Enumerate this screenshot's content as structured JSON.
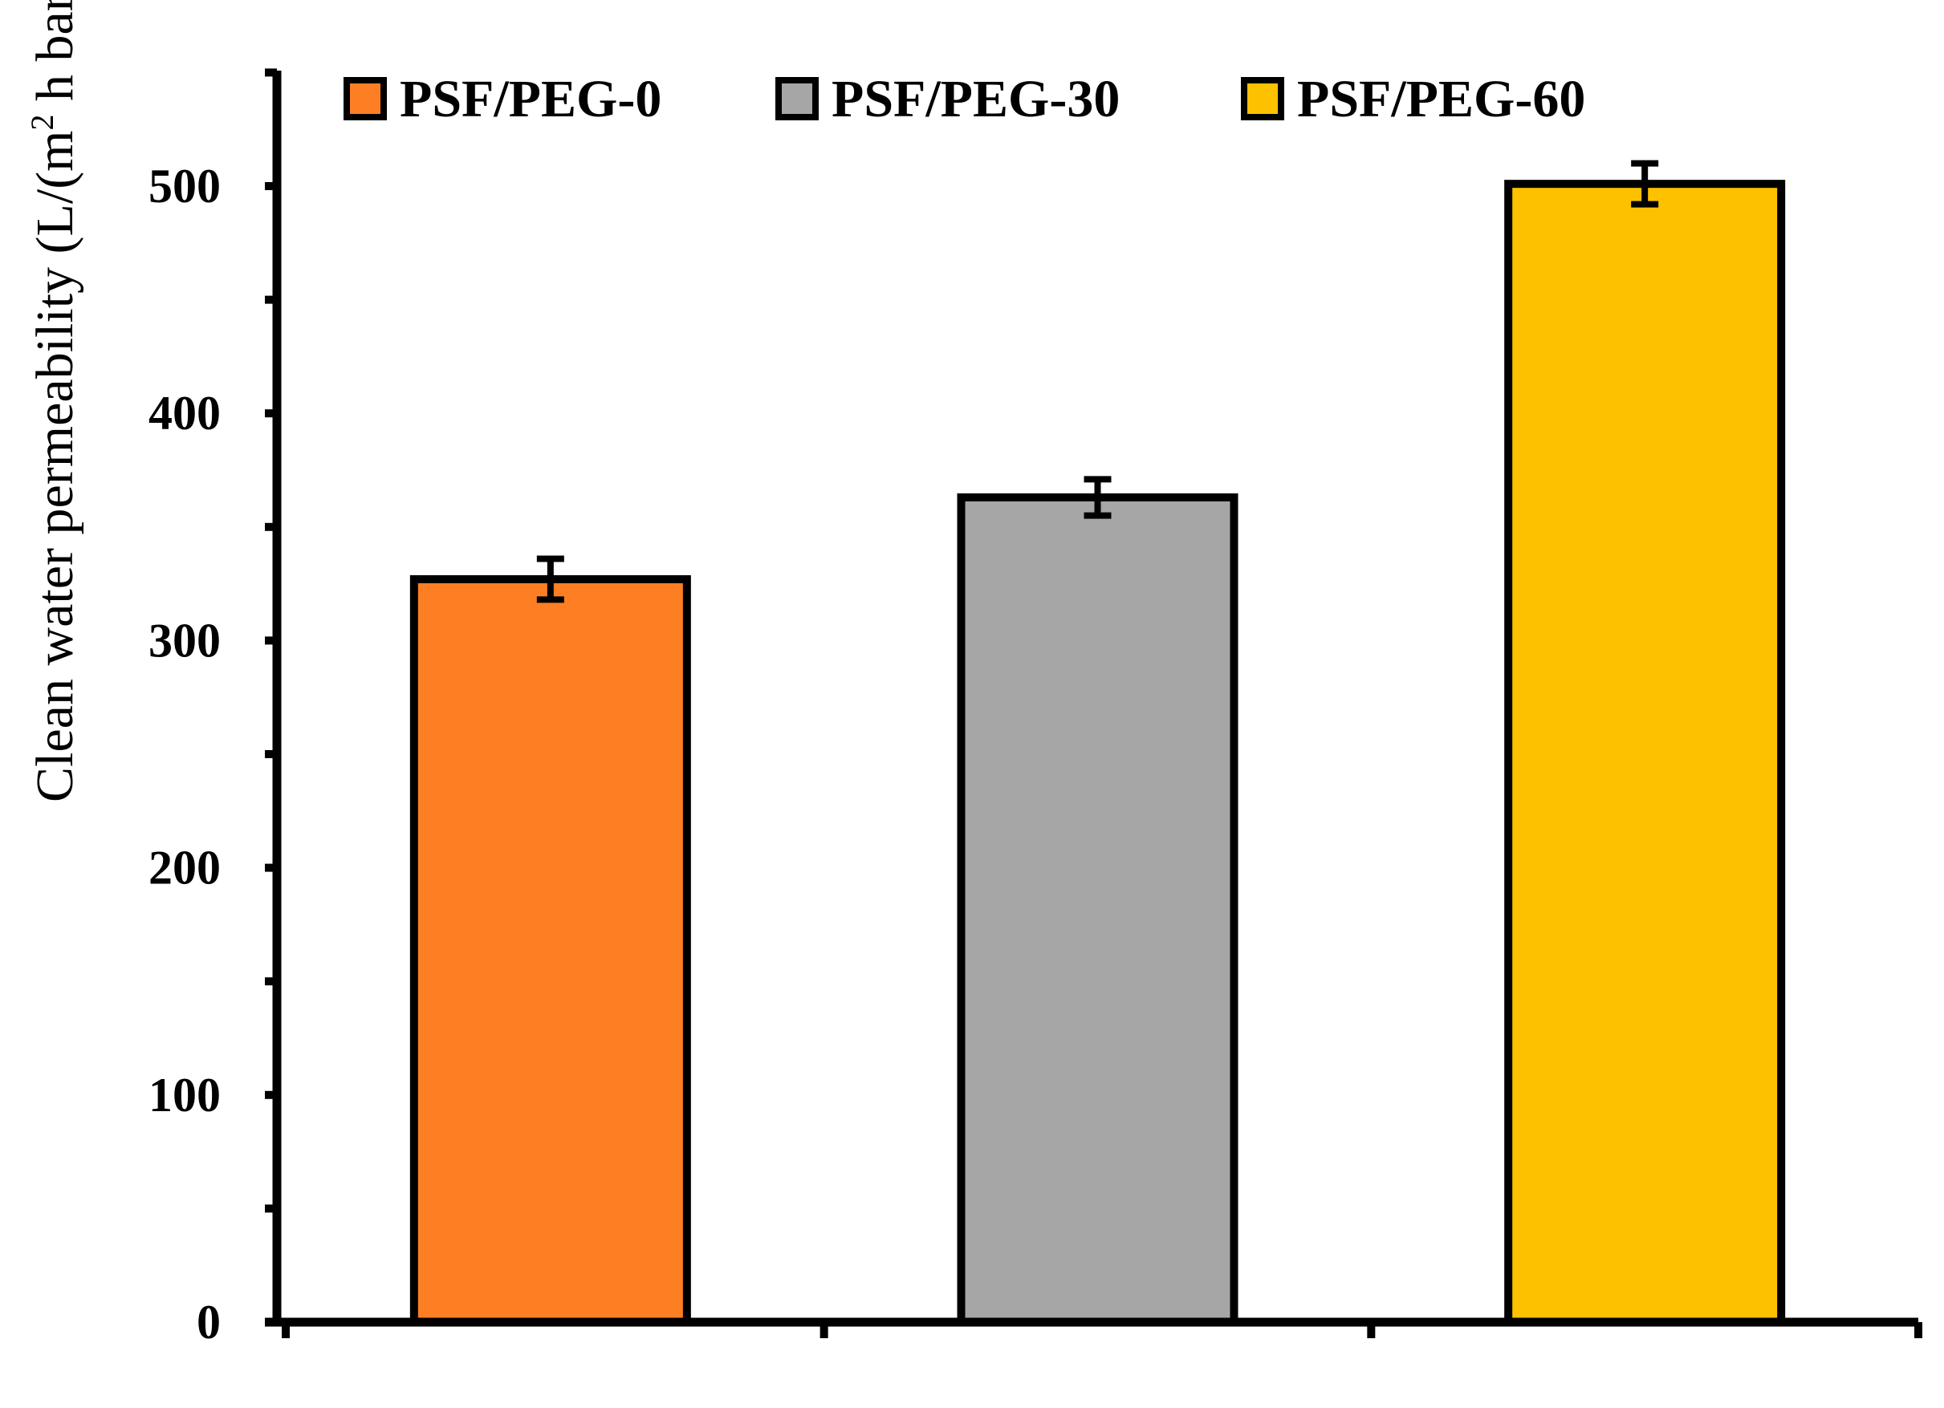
{
  "chart_data": {
    "type": "bar",
    "title": "",
    "xlabel": "",
    "ylabel": {
      "prefix": "Clean water permeability (L/(m",
      "sup": "2",
      "suffix": " h bar))"
    },
    "ylim": [
      0,
      550
    ],
    "yticks": [
      0,
      100,
      200,
      300,
      400,
      500
    ],
    "minor_tick_step": 50,
    "legend_position": "top",
    "series": [
      {
        "name": "PSF/PEG-0",
        "value": 327,
        "error": 9,
        "color": "#fe7f23"
      },
      {
        "name": "PSF/PEG-30",
        "value": 363,
        "error": 8,
        "color": "#a6a6a6"
      },
      {
        "name": "PSF/PEG-60",
        "value": 501,
        "error": 9,
        "color": "#fdc100"
      }
    ]
  }
}
